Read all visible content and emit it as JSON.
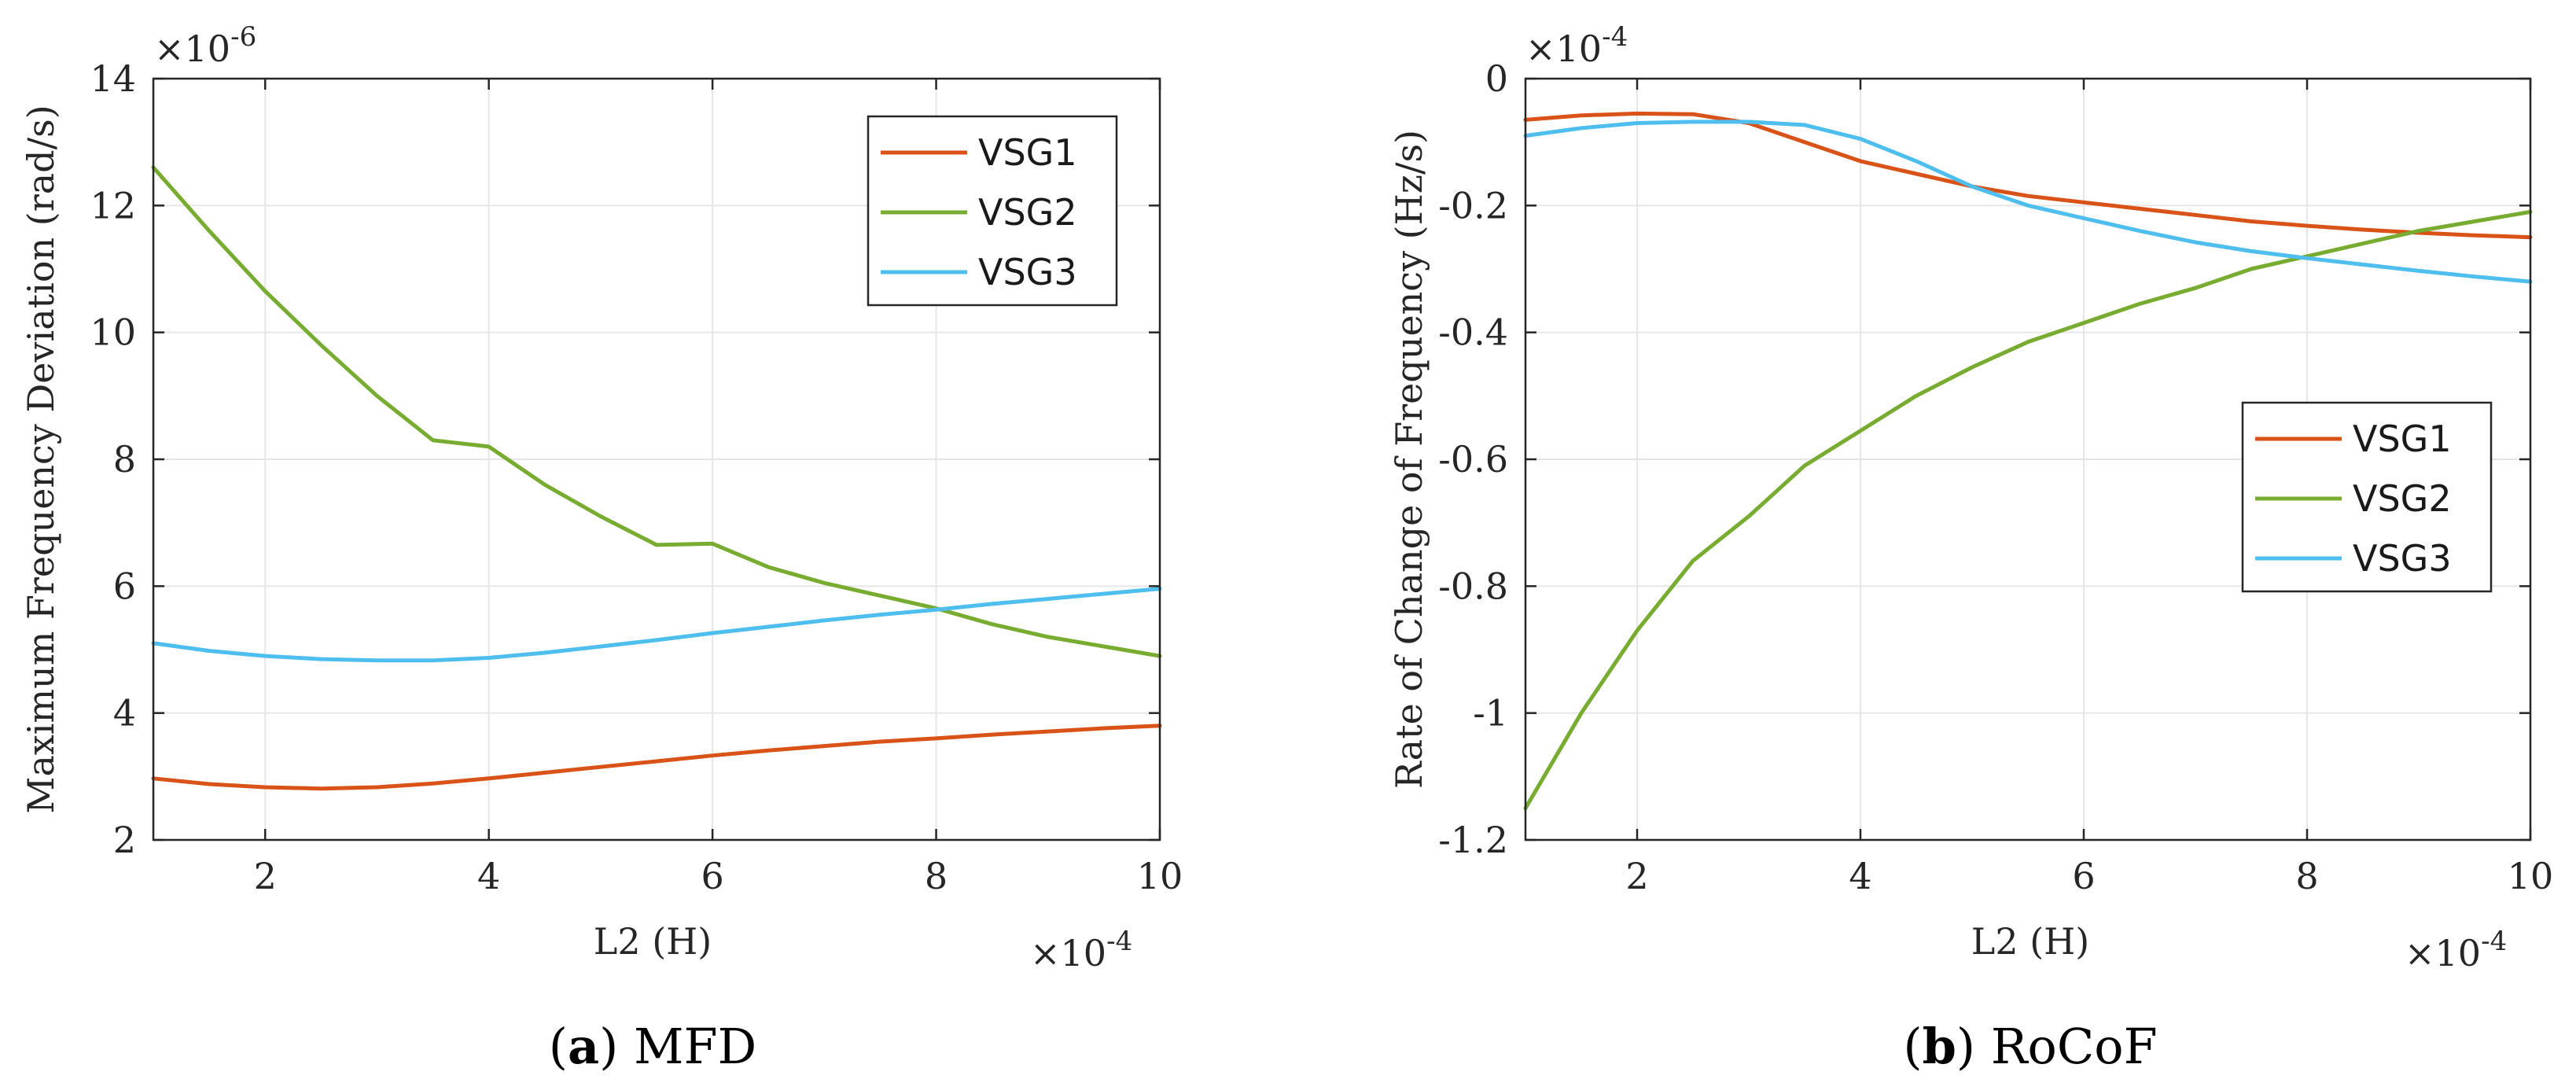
{
  "chart_data": [
    {
      "type": "line",
      "caption_letter": "a",
      "caption_text": "MFD",
      "xlabel": "L2 (H)",
      "ylabel": "Maximum Frequency Deviation (rad/s)",
      "x_multiplier": "×10",
      "x_exponent": "-4",
      "y_multiplier": "×10",
      "y_exponent": "-6",
      "xlim": [
        1,
        10
      ],
      "ylim": [
        2,
        14
      ],
      "xticks": [
        2,
        4,
        6,
        8,
        10
      ],
      "yticks": [
        2,
        4,
        6,
        8,
        10,
        12,
        14
      ],
      "xtick_labels": [
        "2",
        "4",
        "6",
        "8",
        "10"
      ],
      "ytick_labels": [
        "2",
        "4",
        "6",
        "8",
        "10",
        "12",
        "14"
      ],
      "grid": true,
      "legend": "top-right",
      "x": [
        1,
        1.5,
        2,
        2.5,
        3,
        3.5,
        4,
        4.5,
        5,
        5.5,
        6,
        6.5,
        7,
        7.5,
        8,
        8.5,
        9,
        9.5,
        10
      ],
      "series": [
        {
          "name": "VSG1",
          "color": "#D95319",
          "values": [
            2.97,
            2.88,
            2.83,
            2.81,
            2.83,
            2.89,
            2.97,
            3.06,
            3.15,
            3.24,
            3.33,
            3.41,
            3.48,
            3.55,
            3.6,
            3.66,
            3.71,
            3.76,
            3.8
          ]
        },
        {
          "name": "VSG2",
          "color": "#77AC30",
          "values": [
            12.6,
            11.6,
            10.65,
            9.8,
            9.0,
            8.3,
            8.2,
            7.6,
            7.1,
            6.65,
            6.67,
            6.3,
            6.05,
            5.85,
            5.65,
            5.4,
            5.2,
            5.05,
            4.9
          ]
        },
        {
          "name": "VSG3",
          "color": "#4DBEEE",
          "values": [
            5.1,
            4.98,
            4.9,
            4.85,
            4.83,
            4.83,
            4.87,
            4.95,
            5.05,
            5.15,
            5.26,
            5.36,
            5.46,
            5.55,
            5.63,
            5.72,
            5.8,
            5.88,
            5.96
          ]
        }
      ]
    },
    {
      "type": "line",
      "caption_letter": "b",
      "caption_text": "RoCoF",
      "xlabel": "L2 (H)",
      "ylabel": "Rate of Change of Frequency (Hz/s)",
      "x_multiplier": "×10",
      "x_exponent": "-4",
      "y_multiplier": "×10",
      "y_exponent": "-4",
      "xlim": [
        1,
        10
      ],
      "ylim": [
        -1.2,
        0
      ],
      "xticks": [
        2,
        4,
        6,
        8,
        10
      ],
      "yticks": [
        -1.2,
        -1,
        -0.8,
        -0.6,
        -0.4,
        -0.2,
        0
      ],
      "xtick_labels": [
        "2",
        "4",
        "6",
        "8",
        "10"
      ],
      "ytick_labels": [
        "-1.2",
        "-1",
        "-0.8",
        "-0.6",
        "-0.4",
        "-0.2",
        "0"
      ],
      "grid": true,
      "legend": "center-right",
      "x": [
        1,
        1.5,
        2,
        2.5,
        3,
        3.5,
        4,
        4.5,
        5,
        5.5,
        6,
        6.5,
        7,
        7.5,
        8,
        8.5,
        9,
        9.5,
        10
      ],
      "series": [
        {
          "name": "VSG1",
          "color": "#D95319",
          "values": [
            -0.065,
            -0.058,
            -0.055,
            -0.056,
            -0.07,
            -0.1,
            -0.13,
            -0.15,
            -0.17,
            -0.185,
            -0.195,
            -0.205,
            -0.215,
            -0.225,
            -0.232,
            -0.238,
            -0.243,
            -0.247,
            -0.25
          ]
        },
        {
          "name": "VSG2",
          "color": "#77AC30",
          "values": [
            -1.15,
            -1.0,
            -0.87,
            -0.76,
            -0.69,
            -0.61,
            -0.555,
            -0.5,
            -0.455,
            -0.415,
            -0.385,
            -0.355,
            -0.33,
            -0.3,
            -0.28,
            -0.26,
            -0.24,
            -0.225,
            -0.21
          ]
        },
        {
          "name": "VSG3",
          "color": "#4DBEEE",
          "values": [
            -0.09,
            -0.078,
            -0.07,
            -0.068,
            -0.068,
            -0.073,
            -0.095,
            -0.13,
            -0.17,
            -0.2,
            -0.22,
            -0.24,
            -0.258,
            -0.272,
            -0.283,
            -0.293,
            -0.303,
            -0.312,
            -0.32
          ]
        }
      ]
    }
  ]
}
